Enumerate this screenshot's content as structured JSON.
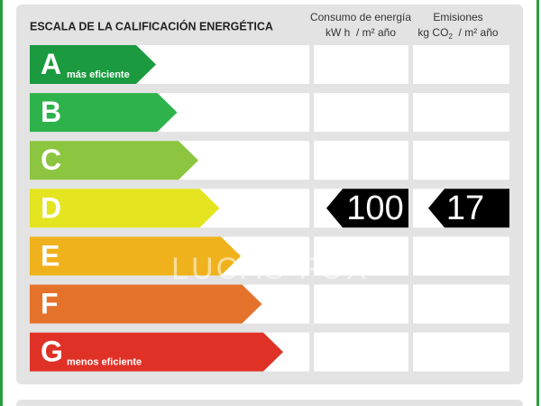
{
  "header": {
    "title": "ESCALA DE LA CALIFICACIÓN ENERGÉTICA",
    "columns": [
      {
        "title": "Consumo de energía",
        "unit": "kW h  / m² año"
      },
      {
        "title": "Emisiones",
        "unit_prefix": "kg CO",
        "unit_sub": "2",
        "unit_suffix": "  / m² año"
      }
    ]
  },
  "watermark": "LUCAS FOX",
  "rows": [
    {
      "letter": "A",
      "label": "más eficiente",
      "color": "#1b9a3f"
    },
    {
      "letter": "B",
      "color": "#2eb24b"
    },
    {
      "letter": "C",
      "color": "#8cc540"
    },
    {
      "letter": "D",
      "color": "#e4e421",
      "consumption": 100,
      "emissions": 17
    },
    {
      "letter": "E",
      "color": "#f0b21c"
    },
    {
      "letter": "F",
      "color": "#e5722a"
    },
    {
      "letter": "G",
      "label": "menos eficiente",
      "color": "#e03127"
    }
  ]
}
